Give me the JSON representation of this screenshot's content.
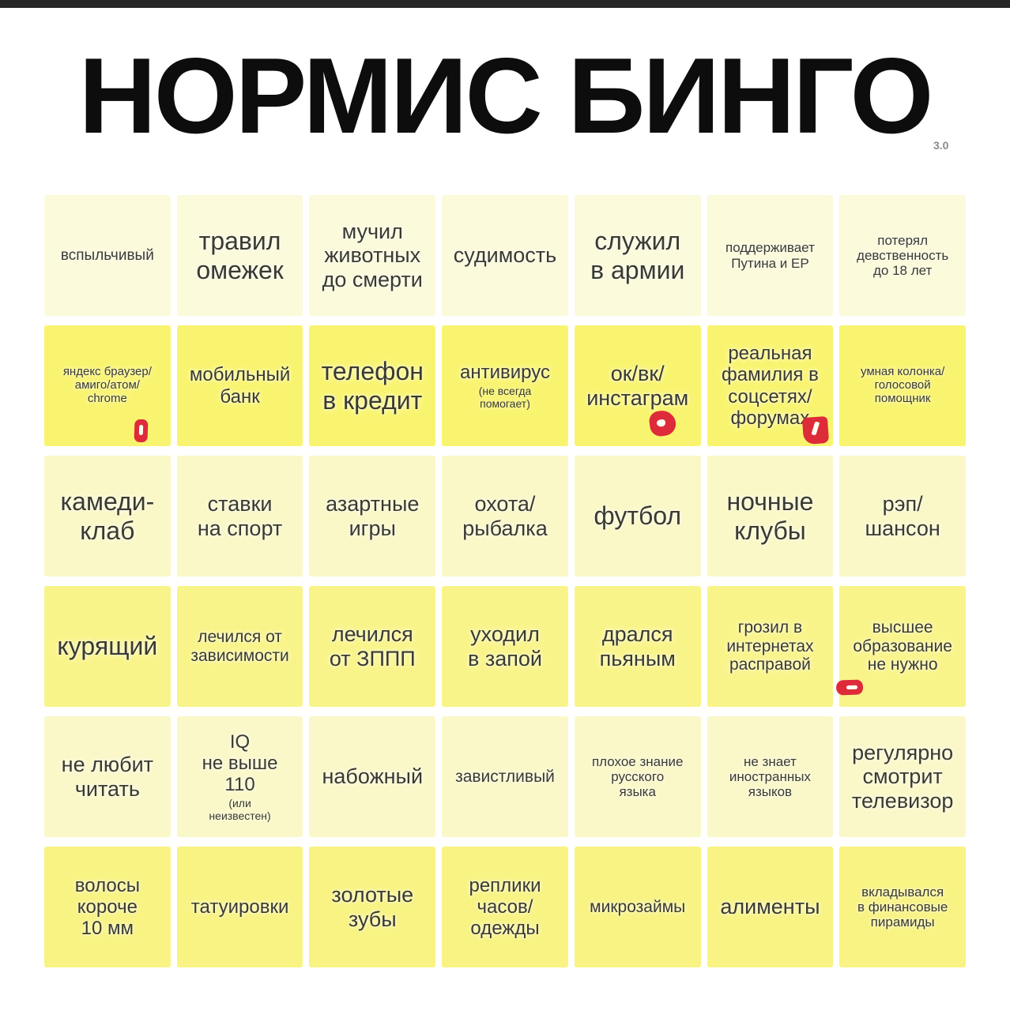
{
  "header": {
    "title": "НОРМИС БИНГО",
    "version": "3.0"
  },
  "colors": {
    "page_bg": "#ffffff",
    "top_bar": "#272727",
    "title_text": "#0d0d0d",
    "version_text": "#8a8a8a",
    "cell_text": "#3a3a32",
    "row1_bg": "#fbfada",
    "row2_bg": "#f9f46f",
    "row3_bg": "#faf8c6",
    "row4_bg": "#f9f489",
    "row5_bg": "#faf8c8",
    "row6_bg": "#f8f382",
    "mark_red": "#dd2b3a"
  },
  "grid": {
    "rows": [
      {
        "shade": "r1",
        "cells": [
          {
            "text": "вспыльчивый",
            "size": "sm"
          },
          {
            "text": "травил\nомежек",
            "size": "xl"
          },
          {
            "text": "мучил\nживотных\nдо смерти",
            "size": "l"
          },
          {
            "text": "судимость",
            "size": "l"
          },
          {
            "text": "служил\nв армии",
            "size": "xl"
          },
          {
            "text": "поддерживает\nПутина и ЕР",
            "size": "s"
          },
          {
            "text": "потерял\nдевственность\nдо 18 лет",
            "size": "s"
          }
        ]
      },
      {
        "shade": "r2",
        "cells": [
          {
            "text": "яндекс браузер/\nамиго/атом/\nchrome",
            "size": "xs"
          },
          {
            "text": "мобильный\nбанк",
            "size": "ml"
          },
          {
            "text": "телефон\nв кредит",
            "size": "xl"
          },
          {
            "text": "антивирус",
            "size": "ml",
            "note": "(не всегда\nпомогает)"
          },
          {
            "text": "ок/вк/\nинстаграм",
            "size": "l"
          },
          {
            "text": "реальная\nфамилия в\nсоцсетях/\nфорумах",
            "size": "ml"
          },
          {
            "text": "умная колонка/\nголосовой\nпомощник",
            "size": "xs"
          }
        ]
      },
      {
        "shade": "r3",
        "cells": [
          {
            "text": "камеди-\nклаб",
            "size": "xl"
          },
          {
            "text": "ставки\nна спорт",
            "size": "l"
          },
          {
            "text": "азартные\nигры",
            "size": "l"
          },
          {
            "text": "охота/\nрыбалка",
            "size": "l"
          },
          {
            "text": "футбол",
            "size": "xl"
          },
          {
            "text": "ночные\nклубы",
            "size": "xl"
          },
          {
            "text": "рэп/\nшансон",
            "size": "l"
          }
        ]
      },
      {
        "shade": "r4",
        "cells": [
          {
            "text": "курящий",
            "size": "xl"
          },
          {
            "text": "лечился от\nзависимости",
            "size": "m"
          },
          {
            "text": "лечился\nот ЗППП",
            "size": "l"
          },
          {
            "text": "уходил\nв запой",
            "size": "l"
          },
          {
            "text": "дрался\nпьяным",
            "size": "l"
          },
          {
            "text": "грозил в\nинтернетах\nрасправой",
            "size": "m"
          },
          {
            "text": "высшее\nобразование\nне нужно",
            "size": "m"
          }
        ]
      },
      {
        "shade": "r5",
        "cells": [
          {
            "text": "не любит\nчитать",
            "size": "l"
          },
          {
            "text": "IQ\nне выше\n110",
            "size": "ml",
            "note": "(или\nнеизвестен)"
          },
          {
            "text": "набожный",
            "size": "l"
          },
          {
            "text": "завистливый",
            "size": "m"
          },
          {
            "text": "плохое знание\nрусского\nязыка",
            "size": "s"
          },
          {
            "text": "не знает\nиностранных\nязыков",
            "size": "s"
          },
          {
            "text": "регулярно\nсмотрит\nтелевизор",
            "size": "l"
          }
        ]
      },
      {
        "shade": "r6",
        "cells": [
          {
            "text": "волосы\nкороче\n10 мм",
            "size": "ml"
          },
          {
            "text": "татуировки",
            "size": "ml"
          },
          {
            "text": "золотые\nзубы",
            "size": "l"
          },
          {
            "text": "реплики\nчасов/\nодежды",
            "size": "ml"
          },
          {
            "text": "микрозаймы",
            "size": "m"
          },
          {
            "text": "алименты",
            "size": "l"
          },
          {
            "text": "вкладывался\nв финансовые\nпирамиды",
            "size": "s"
          }
        ]
      }
    ]
  },
  "marks": [
    {
      "name": "red-mark-browsers",
      "marked_cell": "яндекс браузер/амиго/атом/chrome",
      "shape": "vertical-blob"
    },
    {
      "name": "red-mark-social-networks",
      "marked_cell": "ок/вк/инстаграм",
      "shape": "ring-blob"
    },
    {
      "name": "red-mark-real-name",
      "marked_cell": "реальная фамилия в соцсетях/форумах",
      "shape": "square-blob-with-1"
    },
    {
      "name": "red-mark-education",
      "marked_cell": "высшее образование не нужно",
      "shape": "dash-blob"
    }
  ]
}
